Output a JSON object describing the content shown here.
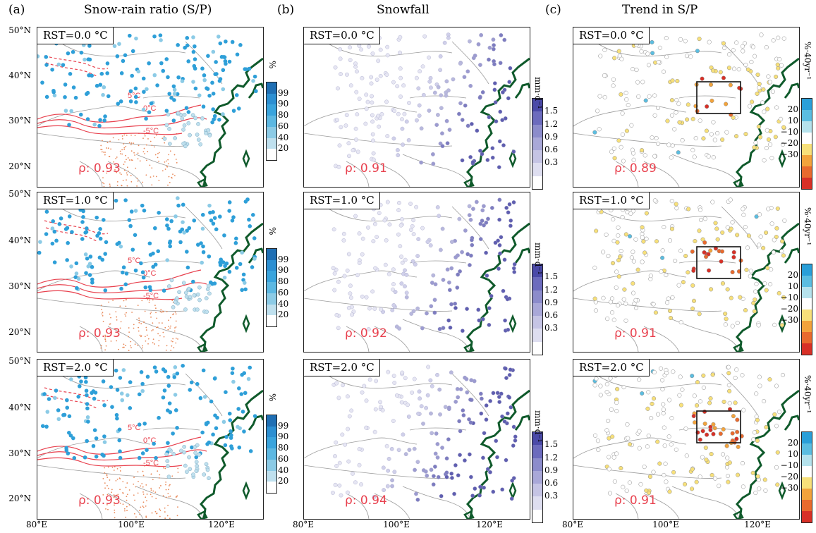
{
  "columns": [
    {
      "letter": "(a)",
      "title": "Snow-rain ratio (S/P)"
    },
    {
      "letter": "(b)",
      "title": "Snowfall"
    },
    {
      "letter": "(c)",
      "title": "Trend in S/P"
    }
  ],
  "rows": [
    {
      "rst": "RST=0.0 °C",
      "rho": [
        "ρ: 0.93",
        "ρ: 0.91",
        "ρ: 0.89"
      ]
    },
    {
      "rst": "RST=1.0 °C",
      "rho": [
        "ρ: 0.93",
        "ρ: 0.92",
        "ρ: 0.91"
      ]
    },
    {
      "rst": "RST=2.0 °C",
      "rho": [
        "ρ: 0.93",
        "ρ: 0.94",
        "ρ: 0.91"
      ]
    }
  ],
  "lat_labels": [
    "50°N",
    "40°N",
    "30°N",
    "20°N"
  ],
  "lon_labels": [
    "80°E",
    "100°E",
    "120°E"
  ],
  "contour_labels": [
    "5°C",
    "0°C",
    "-5°C"
  ],
  "colorbars": {
    "ratio": {
      "unit": "%",
      "ticks": [
        "99",
        "90",
        "80",
        "60",
        "40",
        "20"
      ],
      "colors": [
        "#1f6fb4",
        "#2c8fd2",
        "#3aa4dd",
        "#5db8e2",
        "#8ccbe6",
        "#bfe0ee",
        "#ffffff"
      ]
    },
    "snowfall": {
      "unit": "mm·d⁻¹",
      "ticks": [
        "1.5",
        "1.2",
        "0.9",
        "0.6",
        "0.3"
      ],
      "colors": [
        "#4b4aa8",
        "#6c6bbd",
        "#8c8ccb",
        "#a9a8d8",
        "#c5c4e4",
        "#dedef0",
        "#ffffff"
      ]
    },
    "trend": {
      "unit": "%·40yr⁻¹",
      "ticks": [
        "20",
        "10",
        "−10",
        "−20",
        "−30"
      ],
      "colors": [
        "#2a9fd8",
        "#5bbde0",
        "#b5e2ec",
        "#ffffff",
        "#f7e07a",
        "#f2a33c",
        "#e86a2e",
        "#d73027"
      ]
    }
  },
  "colors": {
    "land": "#9a9a9a",
    "coast": "#0f5a2b",
    "contour": "#e8414e",
    "rho": "#e8414e"
  }
}
